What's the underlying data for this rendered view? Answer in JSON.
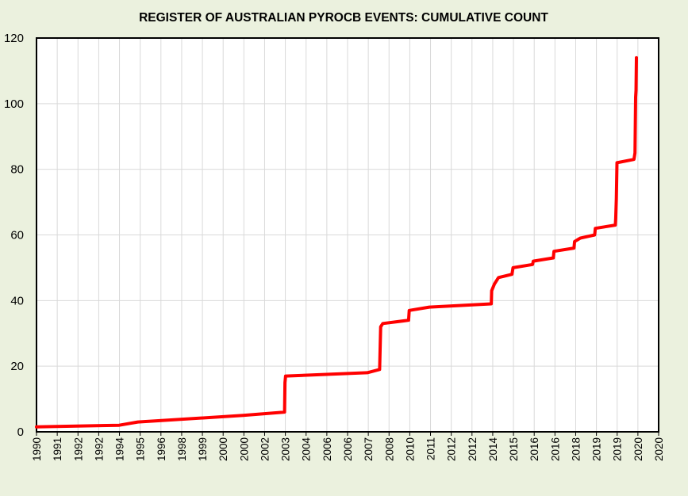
{
  "chart_data": {
    "type": "line",
    "title": "REGISTER OF AUSTRALIAN PYROCB EVENTS: CUMULATIVE COUNT",
    "xlabel": "",
    "ylabel": "",
    "ylim": [
      0,
      120
    ],
    "yticks": [
      "0",
      "20",
      "40",
      "60",
      "80",
      "100",
      "120"
    ],
    "xticks": [
      "1990",
      "1991",
      "1992",
      "1992",
      "1994",
      "1995",
      "1996",
      "1998",
      "1999",
      "2000",
      "2000",
      "2002",
      "2003",
      "2004",
      "2006",
      "2006",
      "2007",
      "2008",
      "2010",
      "2011",
      "2012",
      "2012",
      "2014",
      "2015",
      "2016",
      "2016",
      "2018",
      "2019",
      "2019",
      "2020",
      "2020"
    ],
    "grid": true,
    "line_color": "#ff0000",
    "series": [
      {
        "values": [
          {
            "x": 1990.0,
            "y": 1.5
          },
          {
            "x": 1994.0,
            "y": 2
          },
          {
            "x": 1994.9,
            "y": 3
          },
          {
            "x": 2000.0,
            "y": 5
          },
          {
            "x": 2002.0,
            "y": 6
          },
          {
            "x": 2002.02,
            "y": 15
          },
          {
            "x": 2002.05,
            "y": 17
          },
          {
            "x": 2006.0,
            "y": 18
          },
          {
            "x": 2006.6,
            "y": 19
          },
          {
            "x": 2006.62,
            "y": 25
          },
          {
            "x": 2006.65,
            "y": 32
          },
          {
            "x": 2006.75,
            "y": 33
          },
          {
            "x": 2008.0,
            "y": 34
          },
          {
            "x": 2008.03,
            "y": 37
          },
          {
            "x": 2009.0,
            "y": 38
          },
          {
            "x": 2012.0,
            "y": 39
          },
          {
            "x": 2012.02,
            "y": 43
          },
          {
            "x": 2012.15,
            "y": 45
          },
          {
            "x": 2012.35,
            "y": 47
          },
          {
            "x": 2013.0,
            "y": 48
          },
          {
            "x": 2013.05,
            "y": 50
          },
          {
            "x": 2014.0,
            "y": 51
          },
          {
            "x": 2014.03,
            "y": 52
          },
          {
            "x": 2015.0,
            "y": 53
          },
          {
            "x": 2015.03,
            "y": 55
          },
          {
            "x": 2016.0,
            "y": 56
          },
          {
            "x": 2016.03,
            "y": 58
          },
          {
            "x": 2016.3,
            "y": 59
          },
          {
            "x": 2017.0,
            "y": 60
          },
          {
            "x": 2017.03,
            "y": 62
          },
          {
            "x": 2018.0,
            "y": 63
          },
          {
            "x": 2018.02,
            "y": 65
          },
          {
            "x": 2018.05,
            "y": 71
          },
          {
            "x": 2018.08,
            "y": 82
          },
          {
            "x": 2018.9,
            "y": 83
          },
          {
            "x": 2018.95,
            "y": 85
          },
          {
            "x": 2018.98,
            "y": 102
          },
          {
            "x": 2019.0,
            "y": 104
          },
          {
            "x": 2019.02,
            "y": 114
          }
        ]
      }
    ]
  }
}
